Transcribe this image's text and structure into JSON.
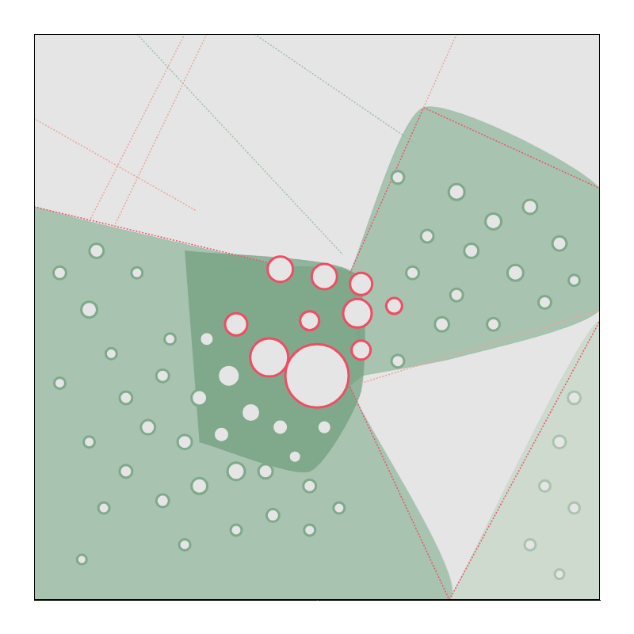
{
  "chart_data": {
    "type": "scatter",
    "xlim": [
      0,
      770
    ],
    "ylim": [
      0,
      770
    ],
    "tick_labels": false,
    "grid": false,
    "series": [
      {
        "type": "area",
        "color": "#8fb59a",
        "x": [
          0,
          95,
          335,
          430,
          445,
          430,
          565,
          0
        ],
        "values": [
          535,
          510,
          455,
          445,
          305,
          290,
          0,
          0
        ]
      },
      {
        "type": "area",
        "color": "#8fb59a",
        "x": [
          430,
          530,
          770,
          770,
          575,
          445
        ],
        "values": [
          445,
          670,
          560,
          395,
          330,
          305
        ]
      },
      {
        "type": "area",
        "color": "#c3d5c3",
        "x": [
          565,
          770,
          770
        ],
        "values": [
          0,
          380,
          0
        ]
      },
      {
        "type": "area",
        "color": "#6f9e7e",
        "x": [
          205,
          435,
          445,
          375,
          225
        ],
        "values": [
          475,
          445,
          285,
          175,
          215
        ]
      },
      {
        "type": "line",
        "line_style": "dotted",
        "color": "#e8566a",
        "x": [
          0,
          335
        ],
        "values": [
          535,
          455
        ]
      },
      {
        "type": "line",
        "line_style": "dotted",
        "color": "#e8566a",
        "x": [
          430,
          565
        ],
        "values": [
          290,
          0
        ]
      },
      {
        "type": "line",
        "line_style": "dotted",
        "color": "#e8566a",
        "x": [
          565,
          770
        ],
        "values": [
          0,
          380
        ]
      },
      {
        "type": "line",
        "line_style": "dotted",
        "color": "#e8566a",
        "x": [
          530,
          770
        ],
        "values": [
          670,
          560
        ]
      },
      {
        "type": "line",
        "line_style": "dotted",
        "color": "#e8566a",
        "x": [
          430,
          530
        ],
        "values": [
          445,
          670
        ]
      },
      {
        "type": "line",
        "line_style": "dotted",
        "color": "#e9a79a",
        "x": [
          75,
          205
        ],
        "values": [
          515,
          770
        ]
      },
      {
        "type": "line",
        "line_style": "dotted",
        "color": "#e9a79a",
        "x": [
          105,
          235
        ],
        "values": [
          500,
          770
        ]
      },
      {
        "type": "line",
        "line_style": "dotted",
        "color": "#e9a79a",
        "x": [
          530,
          575
        ],
        "values": [
          670,
          770
        ]
      },
      {
        "type": "line",
        "line_style": "dotted",
        "color": "#e9a79a",
        "x": [
          0,
          220
        ],
        "values": [
          655,
          530
        ]
      },
      {
        "type": "line",
        "line_style": "dotted",
        "color": "#9dbfa6",
        "x": [
          140,
          420
        ],
        "values": [
          770,
          470
        ]
      },
      {
        "type": "line",
        "line_style": "dotted",
        "color": "#9dbfa6",
        "x": [
          300,
          520
        ],
        "values": [
          770,
          620
        ]
      },
      {
        "type": "line",
        "line_style": "dotted",
        "color": "#e9a79a",
        "x": [
          445,
          770
        ],
        "values": [
          295,
          395
        ]
      },
      {
        "type": "bubble",
        "color": "#7fa98a",
        "x": [
          265,
          225,
          295,
          255,
          335,
          205,
          275,
          225,
          155,
          175,
          125,
          185,
          105,
          75,
          35,
          85,
          140,
          235,
          315,
          355,
          395,
          375,
          175,
          125,
          75,
          35,
          325,
          275,
          205,
          95,
          65,
          375,
          415
        ],
        "values": [
          305,
          275,
          255,
          225,
          235,
          215,
          175,
          155,
          235,
          305,
          275,
          355,
          335,
          395,
          445,
          475,
          445,
          355,
          175,
          195,
          235,
          155,
          135,
          175,
          215,
          295,
          115,
          95,
          75,
          125,
          55,
          95,
          125
        ],
        "sizes": [
          14,
          10,
          12,
          10,
          10,
          9,
          11,
          10,
          9,
          8,
          8,
          7,
          7,
          10,
          8,
          9,
          7,
          9,
          9,
          8,
          9,
          8,
          8,
          8,
          7,
          7,
          8,
          7,
          7,
          7,
          6,
          7,
          7
        ]
      },
      {
        "type": "bubble",
        "color": "#7fa98a",
        "x": [
          495,
          575,
          625,
          675,
          715,
          595,
          535,
          655,
          555,
          625,
          695,
          735,
          495,
          575,
          515
        ],
        "values": [
          575,
          555,
          515,
          535,
          485,
          475,
          495,
          445,
          375,
          375,
          405,
          435,
          325,
          415,
          445
        ],
        "sizes": [
          8,
          10,
          10,
          9,
          9,
          9,
          8,
          10,
          9,
          8,
          8,
          7,
          8,
          8,
          8
        ]
      },
      {
        "type": "bubble",
        "color": "#a9c3ae",
        "x": [
          735,
          715,
          695,
          675,
          735,
          715
        ],
        "values": [
          275,
          215,
          155,
          75,
          125,
          35
        ],
        "sizes": [
          8,
          8,
          7,
          7,
          7,
          6
        ]
      },
      {
        "type": "bubble",
        "color": "#ee4d64",
        "x": [
          385,
          320,
          335,
          395,
          445,
          440,
          375,
          445,
          275,
          490
        ],
        "values": [
          305,
          330,
          450,
          440,
          430,
          390,
          380,
          340,
          375,
          400
        ],
        "sizes": [
          40,
          24,
          16,
          16,
          14,
          18,
          12,
          12,
          14,
          10
        ]
      }
    ]
  }
}
